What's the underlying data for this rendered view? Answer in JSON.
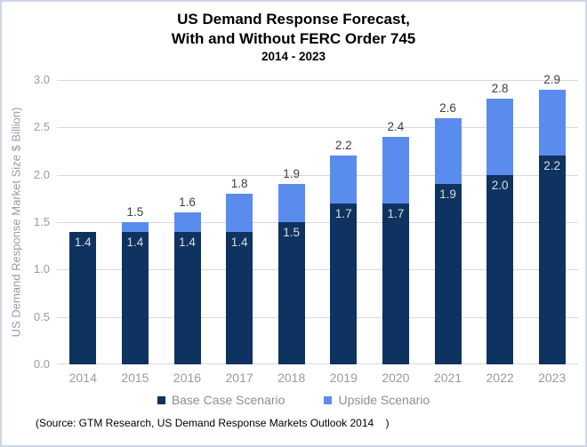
{
  "frame": {
    "border_color": "#ccd7ea",
    "background": "#ffffff"
  },
  "title": {
    "line1": "US Demand Response Forecast,",
    "line2": "With and Without FERC Order 745",
    "line3": "2014 - 2023"
  },
  "chart_data": {
    "type": "bar",
    "stacked": true,
    "title": "US Demand Response Forecast, With and Without FERC Order 745, 2014 - 2023",
    "categories": [
      "2014",
      "2015",
      "2016",
      "2017",
      "2018",
      "2019",
      "2020",
      "2021",
      "2022",
      "2023"
    ],
    "series": [
      {
        "name": "Base Case Scenario",
        "color": "#0e3360",
        "values": [
          1.4,
          1.4,
          1.4,
          1.4,
          1.5,
          1.7,
          1.7,
          1.9,
          2.0,
          2.2
        ]
      },
      {
        "name": "Upside Scenario",
        "color": "#5a8cee",
        "values": [
          0.0,
          0.1,
          0.2,
          0.4,
          0.4,
          0.5,
          0.7,
          0.7,
          0.8,
          0.7
        ]
      }
    ],
    "totals": [
      1.4,
      1.5,
      1.6,
      1.8,
      1.9,
      2.2,
      2.4,
      2.6,
      2.8,
      2.9
    ],
    "base_segment_labels": [
      "1.4",
      "1.4",
      "1.4",
      "1.4",
      "1.5",
      "1.7",
      "1.7",
      "1.9",
      "2.0",
      "2.2"
    ],
    "total_labels": [
      "",
      "1.5",
      "1.6",
      "1.8",
      "1.9",
      "2.2",
      "2.4",
      "2.6",
      "2.8",
      "2.9"
    ],
    "xlabel": "",
    "ylabel": "US Demand Response Market Size $ Billion)",
    "ylim": [
      0.0,
      3.0
    ],
    "yticks": [
      0.0,
      0.5,
      1.0,
      1.5,
      2.0,
      2.5,
      3.0
    ],
    "ytick_labels": [
      "0.0",
      "0.5",
      "1.0",
      "1.5",
      "2.0",
      "2.5",
      "3.0"
    ],
    "grid": true,
    "gridline_color": "#d9d9d9",
    "tick_text_color": "#9b9b9b",
    "total_label_color": "#3f3f3f",
    "inside_label_color": "#dcdcdc",
    "legend_position": "bottom"
  },
  "legend": {
    "items": [
      {
        "label": "Base Case Scenario",
        "color": "#0e3360"
      },
      {
        "label": "Upside Scenario",
        "color": "#5a8cee"
      }
    ]
  },
  "source": "(Source: GTM Research, US Demand Response Markets Outlook 2014    )"
}
